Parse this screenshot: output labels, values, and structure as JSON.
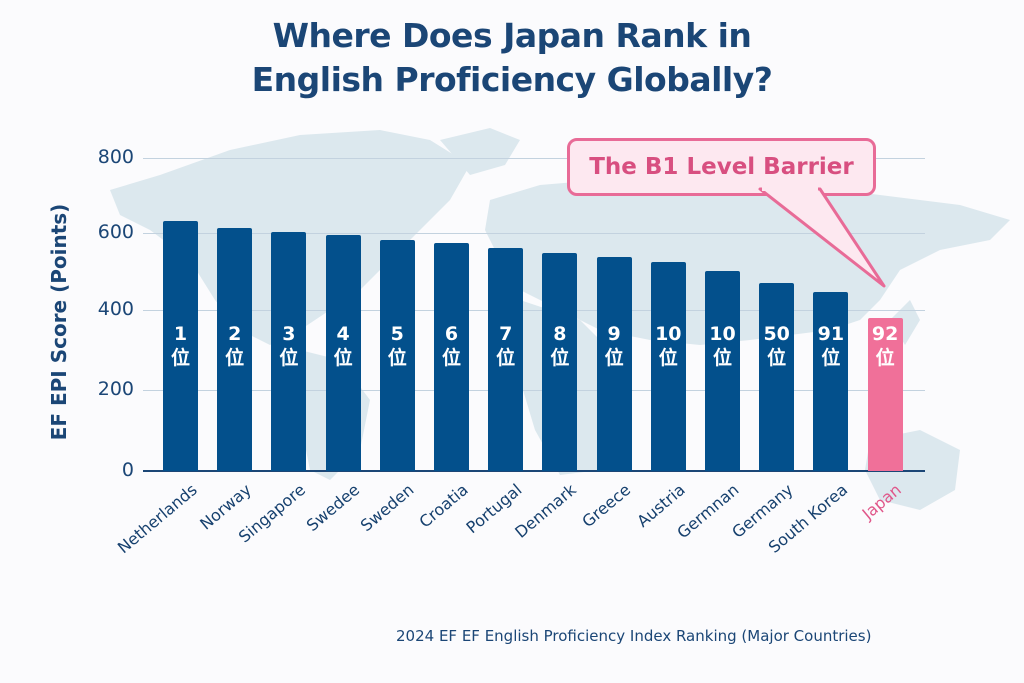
{
  "title_line1": "Where Does Japan Rank in",
  "title_line2": "English Proficiency Globally?",
  "callout": "The B1 Level Barrier",
  "caption": "2024 EF EF English Proficiency Index Ranking (Major Countries)",
  "colors": {
    "bar": "#03508c",
    "highlight": "#f07099",
    "text": "#1b4676",
    "callout_border": "#e86b97",
    "map": "#dce8ee"
  },
  "chart_data": {
    "type": "bar",
    "title": "Where Does Japan Rank in English Proficiency Globally?",
    "xlabel": "",
    "ylabel": "EF EPI Score (Points)",
    "ylim": [
      0,
      800
    ],
    "yticks": [
      0,
      200,
      400,
      600,
      800
    ],
    "grid": true,
    "annotation": "The B1 Level Barrier",
    "footnote": "2024 EF EF English Proficiency Index Ranking (Major Countries)",
    "categories": [
      "Netherlands",
      "Norway",
      "Singapore",
      "Swedee",
      "Sweden",
      "Croatia",
      "Portugal",
      "Denmark",
      "Greece",
      "Austria",
      "Germnan",
      "Germany",
      "South Korea",
      "Japan"
    ],
    "values": [
      632,
      613,
      603,
      595,
      582,
      574,
      561,
      548,
      538,
      525,
      501,
      470,
      447,
      380
    ],
    "rank_labels": [
      "1",
      "2",
      "3",
      "4",
      "5",
      "6",
      "7",
      "8",
      "9",
      "10",
      "10",
      "50",
      "91",
      "92"
    ],
    "rank_suffix": "位",
    "highlight": "Japan"
  }
}
